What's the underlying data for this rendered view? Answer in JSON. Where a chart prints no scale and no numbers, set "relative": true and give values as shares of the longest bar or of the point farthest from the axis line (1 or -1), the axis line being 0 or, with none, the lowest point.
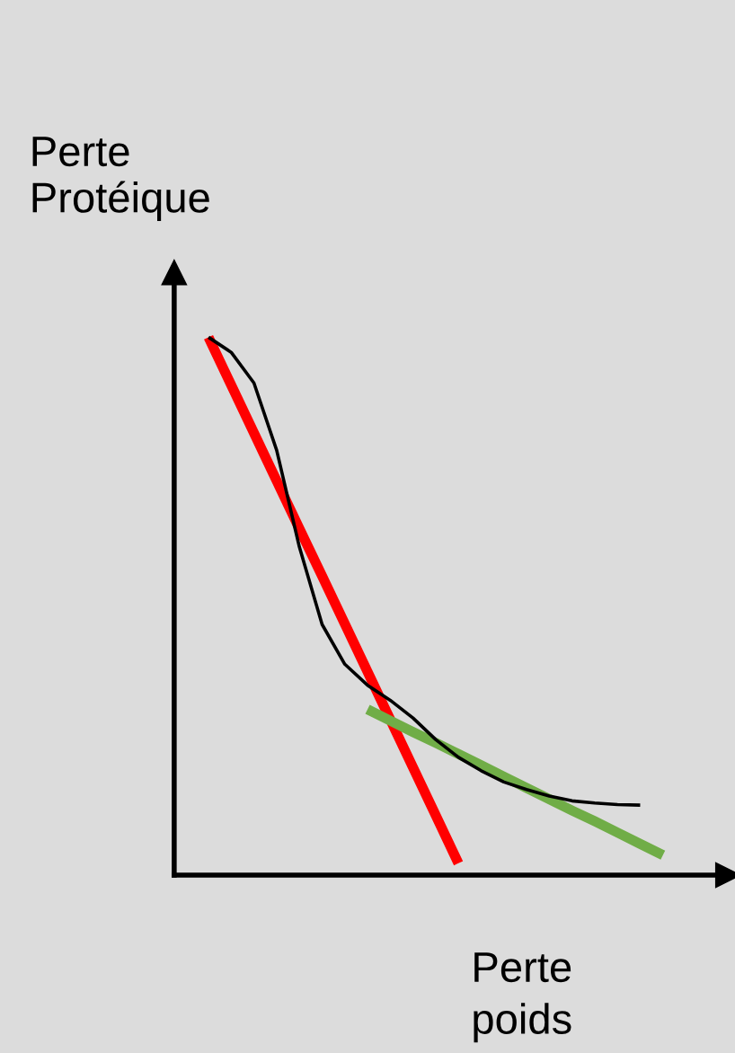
{
  "chart_data": {
    "type": "line",
    "relative": true,
    "xlabel": "Perte\npoids",
    "ylabel": "Perte\nProtéique",
    "legend": false,
    "marker": "none",
    "line_style": "solid",
    "categories": [
      null,
      null,
      null,
      null,
      null,
      null,
      null,
      null,
      null,
      null,
      null,
      null,
      null,
      null,
      null,
      null,
      null,
      null,
      null,
      null,
      null
    ],
    "series": [
      {
        "color": "#000000",
        "values": [
          1,
          0.972,
          0.915,
          0.79,
          0.61,
          0.466,
          0.392,
          0.353,
          0.325,
          0.292,
          0.252,
          0.219,
          0.194,
          0.173,
          0.159,
          0.147,
          0.138,
          0.134,
          0.131,
          0.13,
          null
        ]
      },
      {
        "color": "#ff0000",
        "values": [
          1,
          0.911,
          0.822,
          0.733,
          0.644,
          0.556,
          0.467,
          0.378,
          0.289,
          0.2,
          0.111,
          0.022,
          null,
          null,
          null,
          null,
          null,
          null,
          null,
          null,
          null
        ]
      },
      {
        "color": "#70ad47",
        "values": [
          null,
          null,
          null,
          null,
          null,
          null,
          null,
          0.308,
          0.287,
          0.266,
          0.246,
          0.225,
          0.204,
          0.183,
          0.162,
          0.141,
          0.12,
          0.1,
          0.079,
          0.058,
          0.037
        ]
      }
    ]
  }
}
